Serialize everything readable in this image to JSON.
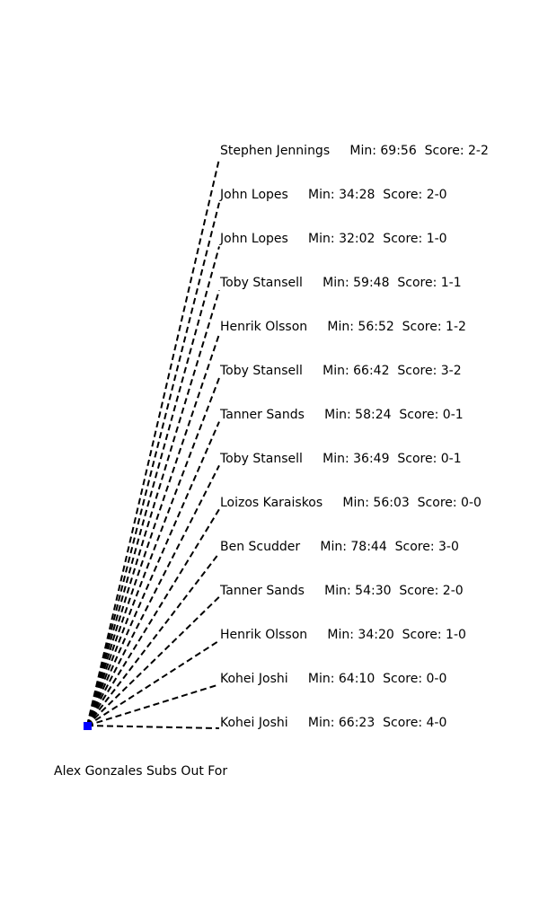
{
  "title": "Alex Gonzales Subs Out For",
  "colors": {
    "origin_marker": "#0000ff",
    "line": "#000000",
    "text": "#000000"
  },
  "substitutions": [
    {
      "player": "Stephen Jennings",
      "minute": "69:56",
      "score": "2-2"
    },
    {
      "player": "John Lopes",
      "minute": "34:28",
      "score": "2-0"
    },
    {
      "player": "John Lopes",
      "minute": "32:02",
      "score": "1-0"
    },
    {
      "player": "Toby Stansell",
      "minute": "59:48",
      "score": "1-1"
    },
    {
      "player": "Henrik Olsson",
      "minute": "56:52",
      "score": "1-2"
    },
    {
      "player": "Toby Stansell",
      "minute": "66:42",
      "score": "3-2"
    },
    {
      "player": "Tanner Sands",
      "minute": "58:24",
      "score": "0-1"
    },
    {
      "player": "Toby Stansell",
      "minute": "36:49",
      "score": "0-1"
    },
    {
      "player": "Loizos Karaiskos",
      "minute": "56:03",
      "score": "0-0"
    },
    {
      "player": "Ben Scudder",
      "minute": "78:44",
      "score": "3-0"
    },
    {
      "player": "Tanner Sands",
      "minute": "54:30",
      "score": "2-0"
    },
    {
      "player": "Henrik Olsson",
      "minute": "34:20",
      "score": "1-0"
    },
    {
      "player": "Kohei Joshi",
      "minute": "64:10",
      "score": "0-0"
    },
    {
      "player": "Kohei Joshi",
      "minute": "66:23",
      "score": "4-0"
    }
  ]
}
